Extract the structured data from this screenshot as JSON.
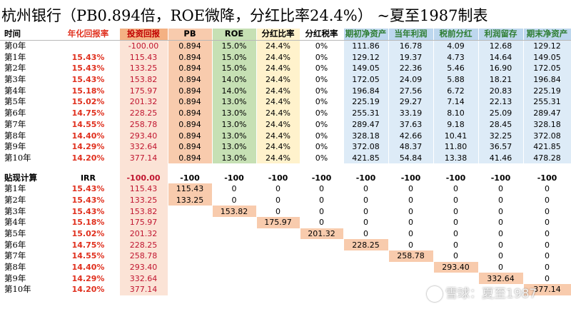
{
  "title": "杭州银行（PB0.894倍，ROE微降，分红比率24.4%）  ~夏至1987制表",
  "headers": [
    "时间",
    "年化回报率",
    "投资回报",
    "PB",
    "ROE",
    "分红比率",
    "分红税率",
    "期初净资产",
    "当年利润",
    "税前分红",
    "利润留存",
    "期末净资产"
  ],
  "rows": [
    {
      "t": "第0年",
      "rate": "",
      "inv": "-100.00",
      "pb": "0.894",
      "roe": "15.0%",
      "pay": "24.4%",
      "tax": "0%",
      "open": "111.86",
      "profit": "16.78",
      "div": "4.09",
      "retain": "12.68",
      "close": "129.12"
    },
    {
      "t": "第1年",
      "rate": "15.43%",
      "inv": "115.43",
      "pb": "0.894",
      "roe": "15.0%",
      "pay": "24.4%",
      "tax": "0%",
      "open": "129.12",
      "profit": "19.37",
      "div": "4.73",
      "retain": "14.64",
      "close": "149.05"
    },
    {
      "t": "第2年",
      "rate": "15.43%",
      "inv": "133.25",
      "pb": "0.894",
      "roe": "15.0%",
      "pay": "24.4%",
      "tax": "0%",
      "open": "149.05",
      "profit": "22.36",
      "div": "5.46",
      "retain": "16.90",
      "close": "172.05"
    },
    {
      "t": "第3年",
      "rate": "15.43%",
      "inv": "153.82",
      "pb": "0.894",
      "roe": "14.0%",
      "pay": "24.4%",
      "tax": "0%",
      "open": "172.05",
      "profit": "24.09",
      "div": "5.88",
      "retain": "18.21",
      "close": "196.84"
    },
    {
      "t": "第4年",
      "rate": "15.18%",
      "inv": "175.97",
      "pb": "0.894",
      "roe": "14.0%",
      "pay": "24.4%",
      "tax": "0%",
      "open": "196.84",
      "profit": "27.56",
      "div": "6.72",
      "retain": "20.83",
      "close": "225.19"
    },
    {
      "t": "第5年",
      "rate": "15.02%",
      "inv": "201.32",
      "pb": "0.894",
      "roe": "13.0%",
      "pay": "24.4%",
      "tax": "0%",
      "open": "225.19",
      "profit": "29.27",
      "div": "7.14",
      "retain": "22.13",
      "close": "255.31"
    },
    {
      "t": "第6年",
      "rate": "14.75%",
      "inv": "228.25",
      "pb": "0.894",
      "roe": "13.0%",
      "pay": "24.4%",
      "tax": "0%",
      "open": "255.31",
      "profit": "33.19",
      "div": "8.10",
      "retain": "25.09",
      "close": "289.47"
    },
    {
      "t": "第7年",
      "rate": "14.55%",
      "inv": "258.78",
      "pb": "0.894",
      "roe": "13.0%",
      "pay": "24.4%",
      "tax": "0%",
      "open": "289.47",
      "profit": "37.63",
      "div": "9.18",
      "retain": "28.45",
      "close": "328.18"
    },
    {
      "t": "第8年",
      "rate": "14.40%",
      "inv": "293.40",
      "pb": "0.894",
      "roe": "13.0%",
      "pay": "24.4%",
      "tax": "0%",
      "open": "328.18",
      "profit": "42.66",
      "div": "10.41",
      "retain": "32.25",
      "close": "372.08"
    },
    {
      "t": "第9年",
      "rate": "14.29%",
      "inv": "332.64",
      "pb": "0.894",
      "roe": "13.0%",
      "pay": "24.4%",
      "tax": "0%",
      "open": "372.08",
      "profit": "48.37",
      "div": "11.80",
      "retain": "36.57",
      "close": "421.85"
    },
    {
      "t": "第10年",
      "rate": "14.20%",
      "inv": "377.14",
      "pb": "0.894",
      "roe": "13.0%",
      "pay": "24.4%",
      "tax": "0%",
      "open": "421.85",
      "profit": "54.84",
      "div": "13.38",
      "retain": "41.46",
      "close": "478.28"
    }
  ],
  "discount_header": {
    "label": "贴现计算",
    "irr": "IRR",
    "inv": "-100.00",
    "cells": [
      "-100",
      "-100",
      "-100",
      "-100",
      "-100",
      "-100",
      "-100",
      "-100",
      "-100",
      "-100"
    ]
  },
  "discount_rows": [
    {
      "t": "第1年",
      "rate": "15.43%",
      "inv": "115.43",
      "cells": [
        "115.43",
        "0",
        "0",
        "0",
        "0",
        "0",
        "0",
        "0",
        "0",
        "0"
      ]
    },
    {
      "t": "第2年",
      "rate": "15.43%",
      "inv": "133.25",
      "cells": [
        "133.25",
        "0",
        "0",
        "0",
        "0",
        "0",
        "0",
        "0",
        "0",
        ""
      ]
    },
    {
      "t": "第3年",
      "rate": "15.43%",
      "inv": "153.82",
      "cells": [
        "",
        "153.82",
        "0",
        "0",
        "0",
        "0",
        "0",
        "0",
        "0",
        ""
      ]
    },
    {
      "t": "第4年",
      "rate": "15.18%",
      "inv": "175.97",
      "cells": [
        "",
        "",
        "175.97",
        "0",
        "0",
        "0",
        "0",
        "0",
        "0",
        ""
      ]
    },
    {
      "t": "第5年",
      "rate": "15.02%",
      "inv": "201.32",
      "cells": [
        "",
        "",
        "",
        "201.32",
        "0",
        "0",
        "0",
        "0",
        "0",
        ""
      ]
    },
    {
      "t": "第6年",
      "rate": "14.75%",
      "inv": "228.25",
      "cells": [
        "",
        "",
        "",
        "",
        "228.25",
        "0",
        "0",
        "0",
        "0",
        ""
      ]
    },
    {
      "t": "第7年",
      "rate": "14.55%",
      "inv": "258.78",
      "cells": [
        "",
        "",
        "",
        "",
        "",
        "258.78",
        "0",
        "0",
        "0",
        ""
      ]
    },
    {
      "t": "第8年",
      "rate": "14.40%",
      "inv": "293.40",
      "cells": [
        "",
        "",
        "",
        "",
        "",
        "",
        "293.40",
        "0",
        "0",
        ""
      ]
    },
    {
      "t": "第9年",
      "rate": "14.29%",
      "inv": "332.64",
      "cells": [
        "",
        "",
        "",
        "",
        "",
        "",
        "",
        "332.64",
        "0",
        ""
      ]
    },
    {
      "t": "第10年",
      "rate": "14.20%",
      "inv": "377.14",
      "cells": [
        "",
        "",
        "",
        "",
        "",
        "",
        "",
        "",
        "377.14",
        ""
      ]
    }
  ],
  "watermark": "雪球：夏至1987"
}
